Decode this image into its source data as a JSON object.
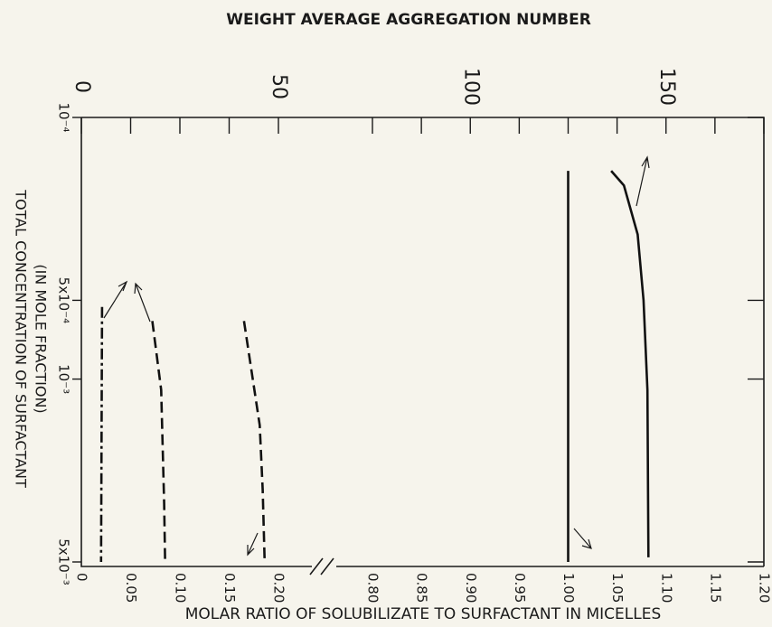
{
  "chart_data": {
    "type": "line",
    "top_title": "WEIGHT AVERAGE AGGREGATION NUMBER",
    "xlabel": "MOLAR RATIO OF SOLUBILIZATE TO SURFACTANT IN MICELLES",
    "ylabel": [
      "TOTAL CONCENTRATION OF SURFACTANT",
      "(IN MOLE FRACTION)"
    ],
    "xlim": [
      0,
      1.2
    ],
    "x_break": [
      0.2,
      0.8
    ],
    "xticks": [
      0,
      0.05,
      {
        "value": 0.1,
        "label": "0.10"
      },
      0.15,
      {
        "value": 0.2,
        "label": "0.20"
      },
      {
        "value": 0.8,
        "label": "0.80"
      },
      0.85,
      {
        "value": 0.9,
        "label": "0.90"
      },
      0.95,
      {
        "value": 1.0,
        "label": "1.00"
      },
      1.05,
      {
        "value": 1.1,
        "label": "1.10"
      },
      1.15,
      {
        "value": 1.2,
        "label": "1.20"
      }
    ],
    "top_ticks": [
      {
        "value": 0,
        "x": 0
      },
      {
        "value": 50,
        "x": 0.2
      },
      {
        "value": 100,
        "x": 0.9
      },
      {
        "value": 150,
        "x": 1.1
      }
    ],
    "y_scale": "log",
    "y_inverted": true,
    "ylim": [
      0.0001,
      0.005
    ],
    "yticks": [
      {
        "value": 0.0001,
        "label": "10⁻⁴"
      },
      {
        "value": 0.0005,
        "label": "5x10⁻⁴"
      },
      {
        "value": 0.001,
        "label": "10⁻³"
      },
      {
        "value": 0.005,
        "label": "5x10⁻³"
      }
    ],
    "series": [
      {
        "color": "#111111",
        "dash": "dashdot",
        "x": [
          0.021,
          0.02
        ],
        "values": [
          0.00053,
          0.005
        ]
      },
      {
        "color": "#111111",
        "dash": "dashed",
        "x": [
          0.072,
          0.081,
          0.084,
          0.085
        ],
        "values": [
          0.0006,
          0.0011,
          0.003,
          0.0049
        ]
      },
      {
        "color": "#111111",
        "dash": "dashed",
        "x": [
          0.165,
          0.181,
          0.184,
          0.186
        ],
        "values": [
          0.0006,
          0.0015,
          0.00265,
          0.0049
        ]
      },
      {
        "color": "#111111",
        "dash": "solid",
        "x": [
          1.0,
          1.0
        ],
        "values": [
          0.00016,
          0.005
        ]
      },
      {
        "color": "#111111",
        "dash": "solid",
        "x": [
          1.044,
          1.057,
          1.071,
          1.077,
          1.081,
          1.082
        ],
        "values": [
          0.00016,
          0.000182,
          0.00028,
          0.0005,
          0.0011,
          0.0048
        ]
      }
    ]
  }
}
